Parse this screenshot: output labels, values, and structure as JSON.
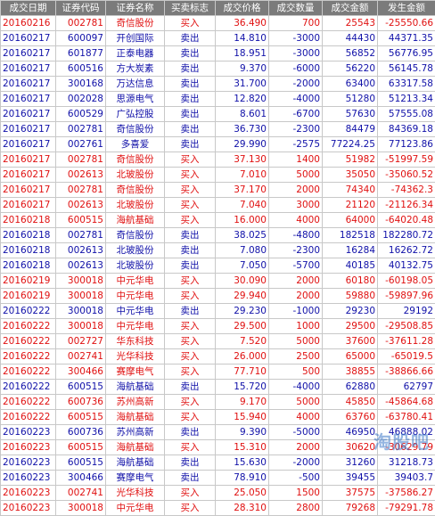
{
  "headers": [
    "成交日期",
    "证券代码",
    "证券名称",
    "买卖标志",
    "成交价格",
    "成交数量",
    "成交金额",
    "发生金额"
  ],
  "rows": [
    {
      "date": "20160216",
      "code": "002781",
      "name": "奇信股份",
      "dir": "买入",
      "price": "36.490",
      "qty": "700",
      "amount": "25543",
      "net": "-25550.66",
      "side": "buy"
    },
    {
      "date": "20160217",
      "code": "600097",
      "name": "开创国际",
      "dir": "卖出",
      "price": "14.810",
      "qty": "-3000",
      "amount": "44430",
      "net": "44371.35",
      "side": "sell"
    },
    {
      "date": "20160217",
      "code": "601877",
      "name": "正泰电器",
      "dir": "卖出",
      "price": "18.951",
      "qty": "-3000",
      "amount": "56852",
      "net": "56776.95",
      "side": "sell"
    },
    {
      "date": "20160217",
      "code": "600516",
      "name": "方大炭素",
      "dir": "卖出",
      "price": "9.370",
      "qty": "-6000",
      "amount": "56220",
      "net": "56145.78",
      "side": "sell"
    },
    {
      "date": "20160217",
      "code": "300168",
      "name": "万达信息",
      "dir": "卖出",
      "price": "31.700",
      "qty": "-2000",
      "amount": "63400",
      "net": "63317.58",
      "side": "sell"
    },
    {
      "date": "20160217",
      "code": "002028",
      "name": "思源电气",
      "dir": "卖出",
      "price": "12.820",
      "qty": "-4000",
      "amount": "51280",
      "net": "51213.34",
      "side": "sell"
    },
    {
      "date": "20160217",
      "code": "600529",
      "name": "广弘控股",
      "dir": "卖出",
      "price": "8.601",
      "qty": "-6700",
      "amount": "57630",
      "net": "57555.08",
      "side": "sell"
    },
    {
      "date": "20160217",
      "code": "002781",
      "name": "奇信股份",
      "dir": "卖出",
      "price": "36.730",
      "qty": "-2300",
      "amount": "84479",
      "net": "84369.18",
      "side": "sell"
    },
    {
      "date": "20160217",
      "code": "002761",
      "name": "多喜爱",
      "dir": "卖出",
      "price": "29.990",
      "qty": "-2575",
      "amount": "77224.25",
      "net": "77123.86",
      "side": "sell"
    },
    {
      "date": "20160217",
      "code": "002781",
      "name": "奇信股份",
      "dir": "买入",
      "price": "37.130",
      "qty": "1400",
      "amount": "51982",
      "net": "-51997.59",
      "side": "buy"
    },
    {
      "date": "20160217",
      "code": "002613",
      "name": "北玻股份",
      "dir": "买入",
      "price": "7.010",
      "qty": "5000",
      "amount": "35050",
      "net": "-35060.52",
      "side": "buy"
    },
    {
      "date": "20160217",
      "code": "002781",
      "name": "奇信股份",
      "dir": "买入",
      "price": "37.170",
      "qty": "2000",
      "amount": "74340",
      "net": "-74362.3",
      "side": "buy"
    },
    {
      "date": "20160217",
      "code": "002613",
      "name": "北玻股份",
      "dir": "买入",
      "price": "7.040",
      "qty": "3000",
      "amount": "21120",
      "net": "-21126.34",
      "side": "buy"
    },
    {
      "date": "20160218",
      "code": "600515",
      "name": "海航基础",
      "dir": "买入",
      "price": "16.000",
      "qty": "4000",
      "amount": "64000",
      "net": "-64020.48",
      "side": "buy"
    },
    {
      "date": "20160218",
      "code": "002781",
      "name": "奇信股份",
      "dir": "卖出",
      "price": "38.025",
      "qty": "-4800",
      "amount": "182518",
      "net": "182280.72",
      "side": "sell"
    },
    {
      "date": "20160218",
      "code": "002613",
      "name": "北玻股份",
      "dir": "卖出",
      "price": "7.080",
      "qty": "-2300",
      "amount": "16284",
      "net": "16262.72",
      "side": "sell"
    },
    {
      "date": "20160218",
      "code": "002613",
      "name": "北玻股份",
      "dir": "卖出",
      "price": "7.050",
      "qty": "-5700",
      "amount": "40185",
      "net": "40132.75",
      "side": "sell"
    },
    {
      "date": "20160219",
      "code": "300018",
      "name": "中元华电",
      "dir": "买入",
      "price": "30.090",
      "qty": "2000",
      "amount": "60180",
      "net": "-60198.05",
      "side": "buy"
    },
    {
      "date": "20160219",
      "code": "300018",
      "name": "中元华电",
      "dir": "买入",
      "price": "29.940",
      "qty": "2000",
      "amount": "59880",
      "net": "-59897.96",
      "side": "buy"
    },
    {
      "date": "20160222",
      "code": "300018",
      "name": "中元华电",
      "dir": "卖出",
      "price": "29.230",
      "qty": "-1000",
      "amount": "29230",
      "net": "29192",
      "side": "sell"
    },
    {
      "date": "20160222",
      "code": "300018",
      "name": "中元华电",
      "dir": "买入",
      "price": "29.500",
      "qty": "1000",
      "amount": "29500",
      "net": "-29508.85",
      "side": "buy"
    },
    {
      "date": "20160222",
      "code": "002727",
      "name": "华东科技",
      "dir": "买入",
      "price": "7.520",
      "qty": "5000",
      "amount": "37600",
      "net": "-37611.28",
      "side": "buy"
    },
    {
      "date": "20160222",
      "code": "002741",
      "name": "光华科技",
      "dir": "买入",
      "price": "26.000",
      "qty": "2500",
      "amount": "65000",
      "net": "-65019.5",
      "side": "buy"
    },
    {
      "date": "20160222",
      "code": "300466",
      "name": "赛摩电气",
      "dir": "买入",
      "price": "77.710",
      "qty": "500",
      "amount": "38855",
      "net": "-38866.66",
      "side": "buy"
    },
    {
      "date": "20160222",
      "code": "600515",
      "name": "海航基础",
      "dir": "卖出",
      "price": "15.720",
      "qty": "-4000",
      "amount": "62880",
      "net": "62797",
      "side": "sell"
    },
    {
      "date": "20160222",
      "code": "600736",
      "name": "苏州高新",
      "dir": "买入",
      "price": "9.170",
      "qty": "5000",
      "amount": "45850",
      "net": "-45864.68",
      "side": "buy"
    },
    {
      "date": "20160222",
      "code": "600515",
      "name": "海航基础",
      "dir": "买入",
      "price": "15.940",
      "qty": "4000",
      "amount": "63760",
      "net": "-63780.41",
      "side": "buy"
    },
    {
      "date": "20160223",
      "code": "600736",
      "name": "苏州高新",
      "dir": "卖出",
      "price": "9.390",
      "qty": "-5000",
      "amount": "46950",
      "net": "46888.02",
      "side": "sell"
    },
    {
      "date": "20160223",
      "code": "600515",
      "name": "海航基础",
      "dir": "买入",
      "price": "15.310",
      "qty": "2000",
      "amount": "30620",
      "net": "-30629.79",
      "side": "buy"
    },
    {
      "date": "20160223",
      "code": "600515",
      "name": "海航基础",
      "dir": "卖出",
      "price": "15.630",
      "qty": "-2000",
      "amount": "31260",
      "net": "31218.73",
      "side": "sell"
    },
    {
      "date": "20160223",
      "code": "300466",
      "name": "赛摩电气",
      "dir": "卖出",
      "price": "78.910",
      "qty": "-500",
      "amount": "39455",
      "net": "39403.7",
      "side": "sell"
    },
    {
      "date": "20160223",
      "code": "002741",
      "name": "光华科技",
      "dir": "买入",
      "price": "25.050",
      "qty": "1500",
      "amount": "37575",
      "net": "-37586.27",
      "side": "buy"
    },
    {
      "date": "20160223",
      "code": "300018",
      "name": "中元华电",
      "dir": "买入",
      "price": "28.310",
      "qty": "2800",
      "amount": "79268",
      "net": "-79291.78",
      "side": "buy"
    }
  ],
  "watermark": "淘股吧",
  "colors": {
    "buy": "#e01010",
    "sell": "#1010a8",
    "header_bg": "#7b7b7b"
  }
}
